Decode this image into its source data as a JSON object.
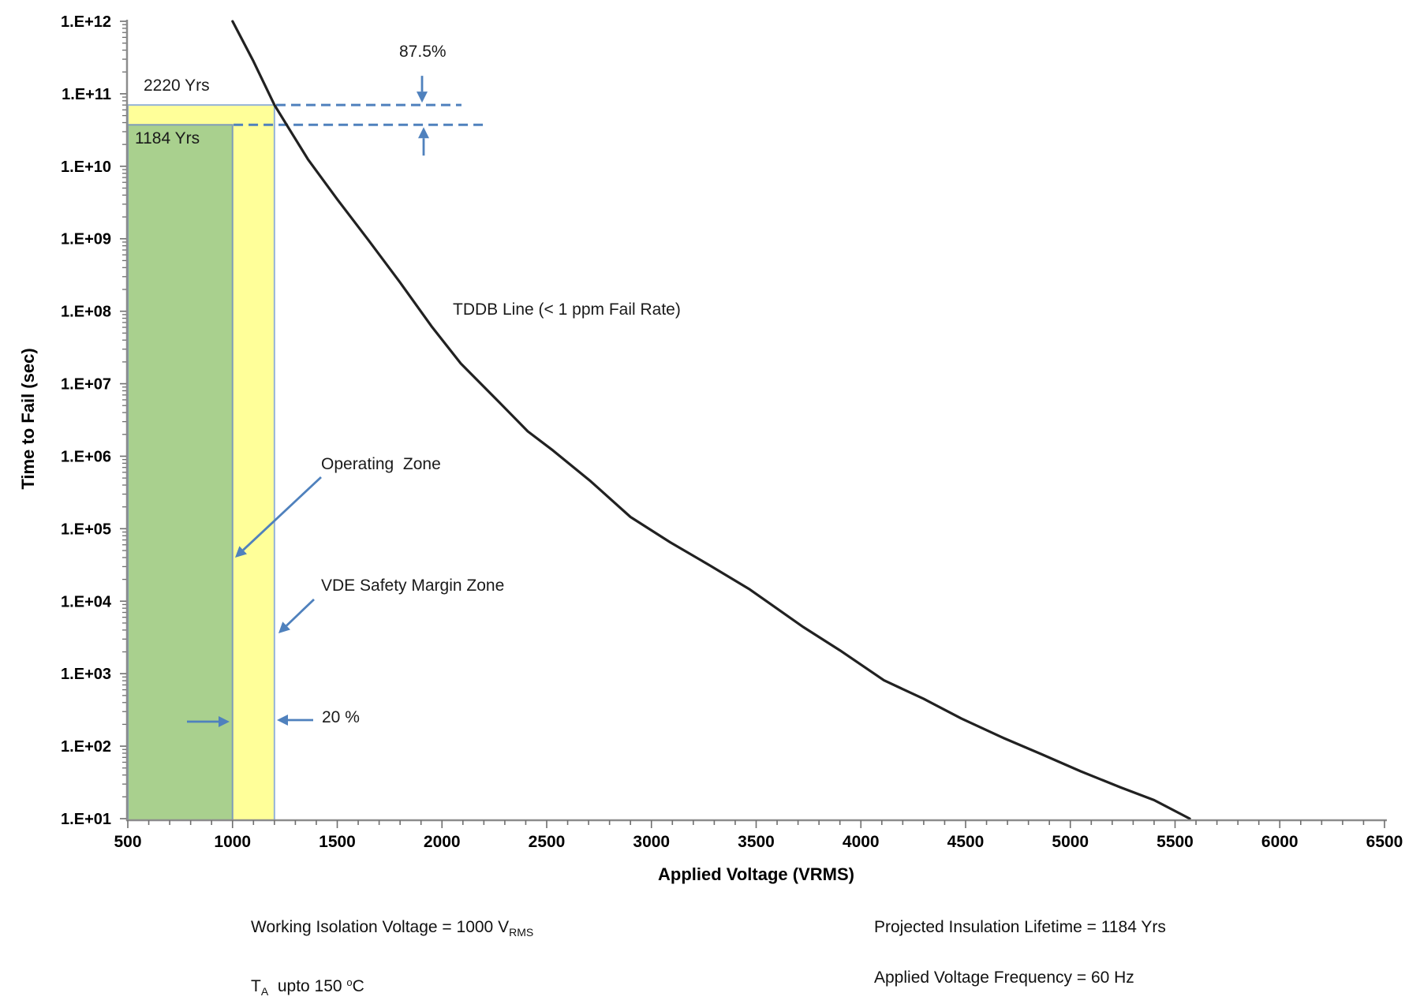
{
  "figure": {
    "x_axis_title": "Applied Voltage (VRMS)",
    "y_axis_title": "Time to Fail (sec)"
  },
  "annotations": {
    "yrs_2220": "2220 Yrs",
    "yrs_1184": "1184 Yrs",
    "pct_875": "87.5%",
    "tddb_label": "TDDB Line (< 1 ppm Fail Rate)",
    "operating_zone": "Operating  Zone",
    "vde_zone": "VDE Safety Margin Zone",
    "pct_20": "20 %"
  },
  "footer": {
    "left": {
      "line1_main": "Working Isolation Voltage = 1000 V",
      "line1_sub": "RMS",
      "line2_t": "T",
      "line2_t_sub": "A",
      "line2_mid": "  upto 150 ",
      "line2_sup": "o",
      "line2_end": "C"
    },
    "right": {
      "line1": "Projected Insulation Lifetime = 1184 Yrs",
      "line2": "Applied Voltage Frequency = 60 Hz"
    }
  },
  "chart_data": {
    "type": "line",
    "title": "",
    "xlabel": "Applied Voltage (VRMS)",
    "ylabel": "Time to Fail (sec)",
    "x_axis": {
      "min": 500,
      "max": 6500,
      "major_tick_step": 500,
      "minor_tick_step": 100,
      "tick_labels": [
        "500",
        "1000",
        "1500",
        "2000",
        "2500",
        "3000",
        "3500",
        "4000",
        "4500",
        "5000",
        "5500",
        "6000",
        "6500"
      ]
    },
    "y_axis": {
      "scale": "log",
      "min": 10.0,
      "max": 1000000000000.0,
      "tick_labels": [
        "1.E+01",
        "1.E+02",
        "1.E+03",
        "1.E+04",
        "1.E+05",
        "1.E+06",
        "1.E+07",
        "1.E+08",
        "1.E+09",
        "1.E+10",
        "1.E+11",
        "1.E+12"
      ]
    },
    "grid": false,
    "series": [
      {
        "name": "TDDB Line (< 1 ppm Fail Rate)",
        "color": "#212121",
        "points": [
          [
            1000,
            1000000000000.0
          ],
          [
            1100,
            280000000000.0
          ],
          [
            1200,
            70000000000.0
          ],
          [
            1270,
            33000000000.0
          ],
          [
            1360,
            12500000000.0
          ],
          [
            1500,
            3500000000.0
          ],
          [
            1650,
            950000000.0
          ],
          [
            1800,
            250000000.0
          ],
          [
            1950,
            62000000.0
          ],
          [
            2090,
            19000000.0
          ],
          [
            2250,
            6500000.0
          ],
          [
            2410,
            2200000.0
          ],
          [
            2530,
            1200000.0
          ],
          [
            2710,
            450000.0
          ],
          [
            2900,
            145000.0
          ],
          [
            3090,
            65000.0
          ],
          [
            3280,
            31000.0
          ],
          [
            3470,
            14500.0
          ],
          [
            3725,
            4400.0
          ],
          [
            3900,
            2100.0
          ],
          [
            4110,
            810.0
          ],
          [
            4300,
            450.0
          ],
          [
            4480,
            240.0
          ],
          [
            4680,
            130.0
          ],
          [
            4860,
            78.0
          ],
          [
            5050,
            45.0
          ],
          [
            5240,
            27.0
          ],
          [
            5400,
            18.0
          ],
          [
            5570,
            10.0
          ]
        ]
      }
    ],
    "zones": [
      {
        "name": "VDE Safety Margin Zone",
        "v_start": 500,
        "v_end": 1200,
        "t_top": 70000000000.0,
        "t_top_label": "2220 Yrs",
        "fill": "#FFFF99",
        "border": "#95B3D7"
      },
      {
        "name": "Operating Zone",
        "v_start": 500,
        "v_end": 1000,
        "t_top": 37300000000.0,
        "t_top_label": "1184 Yrs",
        "fill": "#A9D08E",
        "border": "#7E9CB9"
      }
    ],
    "dashed_guides": [
      {
        "t": 70000000000.0,
        "v_start": 1208,
        "v_end": 2093,
        "color": "#4F81BD"
      },
      {
        "t": 37300000000.0,
        "v_start": 1005,
        "v_end": 2198,
        "color": "#4F81BD"
      }
    ],
    "callouts": {
      "lifetime_margin_percent": "87.5%",
      "vde_voltage_margin_percent": "20 %",
      "working_isolation_voltage_vrms": 1000,
      "projected_insulation_lifetime_years": 1184,
      "lifetime_at_vde_margin_years": 2220,
      "applied_voltage_frequency_hz": 60,
      "fail_rate": "< 1 ppm",
      "ambient_temperature_max_c": 150
    },
    "colors": {
      "curve": "#212121",
      "axis_line": "#8C8C8C",
      "tick": "#6E6E6E",
      "arrow_blue": "#4F81BD",
      "zone_yellow": "#FFFF99",
      "zone_green": "#A9D08E"
    }
  }
}
